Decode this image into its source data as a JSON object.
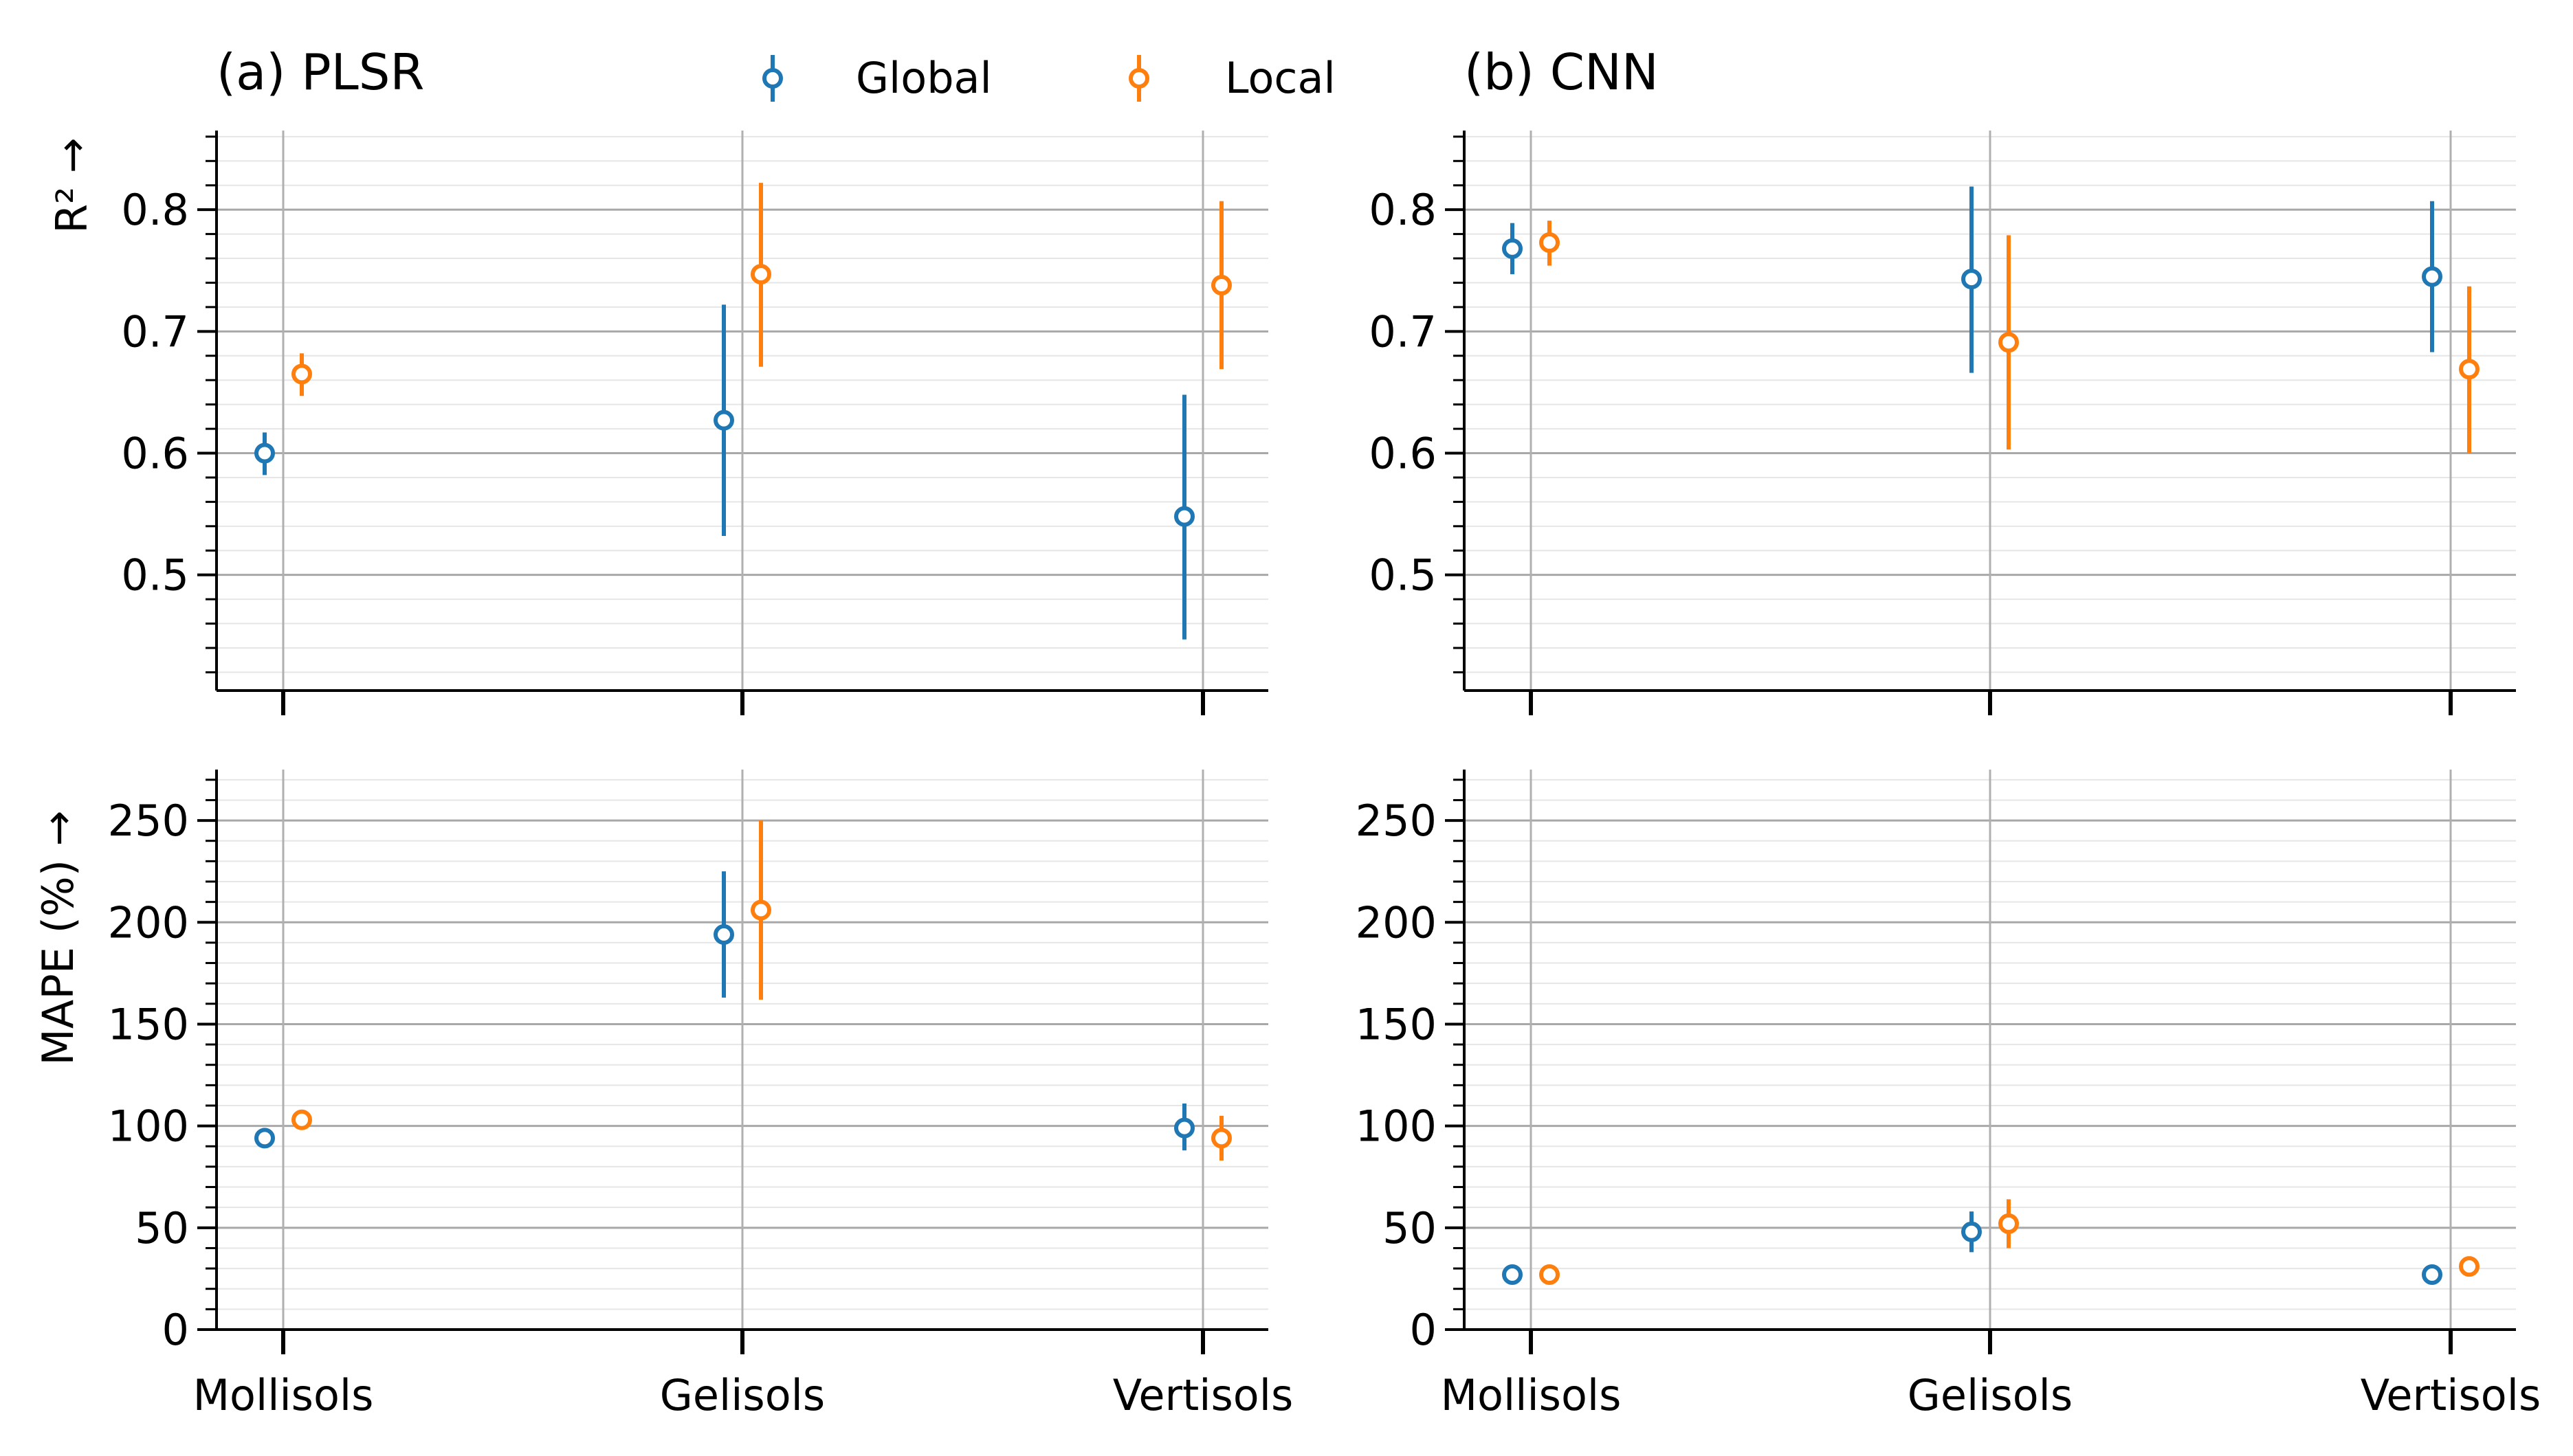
{
  "legend": {
    "entries": [
      {
        "label": "Global",
        "color": "#1f77b4"
      },
      {
        "label": "Local",
        "color": "#ff7f0e"
      }
    ]
  },
  "y_labels": {
    "top": "R² →",
    "bottom": "MAPE (%) →"
  },
  "panels": [
    {
      "title": "(a) PLSR"
    },
    {
      "title": "(b) CNN"
    }
  ],
  "chart_data": [
    {
      "type": "scatter",
      "panel": "(a) PLSR — R²",
      "title": "(a) PLSR",
      "ylabel": "R² →",
      "categories": [
        "Mollisols",
        "Gelisols",
        "Vertisols"
      ],
      "ylim": [
        0.405,
        0.865
      ],
      "yticks": [
        0.5,
        0.6,
        0.7,
        0.8
      ],
      "grid": true,
      "series": [
        {
          "name": "Global",
          "values": [
            0.6,
            0.627,
            0.548
          ],
          "err_low": [
            0.582,
            0.532,
            0.447
          ],
          "err_high": [
            0.617,
            0.722,
            0.648
          ]
        },
        {
          "name": "Local",
          "values": [
            0.665,
            0.747,
            0.738
          ],
          "err_low": [
            0.647,
            0.671,
            0.669
          ],
          "err_high": [
            0.682,
            0.822,
            0.807
          ]
        }
      ]
    },
    {
      "type": "scatter",
      "panel": "(b) CNN — R²",
      "title": "(b) CNN",
      "ylabel": "",
      "categories": [
        "Mollisols",
        "Gelisols",
        "Vertisols"
      ],
      "ylim": [
        0.405,
        0.865
      ],
      "yticks": [
        0.5,
        0.6,
        0.7,
        0.8
      ],
      "grid": true,
      "series": [
        {
          "name": "Global",
          "values": [
            0.768,
            0.743,
            0.745
          ],
          "err_low": [
            0.747,
            0.666,
            0.683
          ],
          "err_high": [
            0.789,
            0.819,
            0.807
          ]
        },
        {
          "name": "Local",
          "values": [
            0.773,
            0.691,
            0.669
          ],
          "err_low": [
            0.754,
            0.603,
            0.6
          ],
          "err_high": [
            0.791,
            0.779,
            0.737
          ]
        }
      ]
    },
    {
      "type": "scatter",
      "panel": "(a) PLSR — MAPE",
      "ylabel": "MAPE (%) →",
      "categories": [
        "Mollisols",
        "Gelisols",
        "Vertisols"
      ],
      "ylim": [
        0,
        275
      ],
      "yticks": [
        0,
        50,
        100,
        150,
        200,
        250
      ],
      "grid": true,
      "series": [
        {
          "name": "Global",
          "values": [
            94,
            194,
            99
          ],
          "err_low": [
            91,
            163,
            88
          ],
          "err_high": [
            97,
            225,
            111
          ]
        },
        {
          "name": "Local",
          "values": [
            103,
            206,
            94
          ],
          "err_low": [
            99,
            162,
            83
          ],
          "err_high": [
            107,
            250,
            105
          ]
        }
      ]
    },
    {
      "type": "scatter",
      "panel": "(b) CNN — MAPE",
      "ylabel": "",
      "categories": [
        "Mollisols",
        "Gelisols",
        "Vertisols"
      ],
      "ylim": [
        0,
        275
      ],
      "yticks": [
        0,
        50,
        100,
        150,
        200,
        250
      ],
      "grid": true,
      "series": [
        {
          "name": "Global",
          "values": [
            27,
            48,
            27
          ],
          "err_low": [
            25,
            38,
            25
          ],
          "err_high": [
            29,
            58,
            29
          ]
        },
        {
          "name": "Local",
          "values": [
            27,
            52,
            31
          ],
          "err_low": [
            25,
            40,
            28
          ],
          "err_high": [
            29,
            64,
            34
          ]
        }
      ]
    }
  ]
}
